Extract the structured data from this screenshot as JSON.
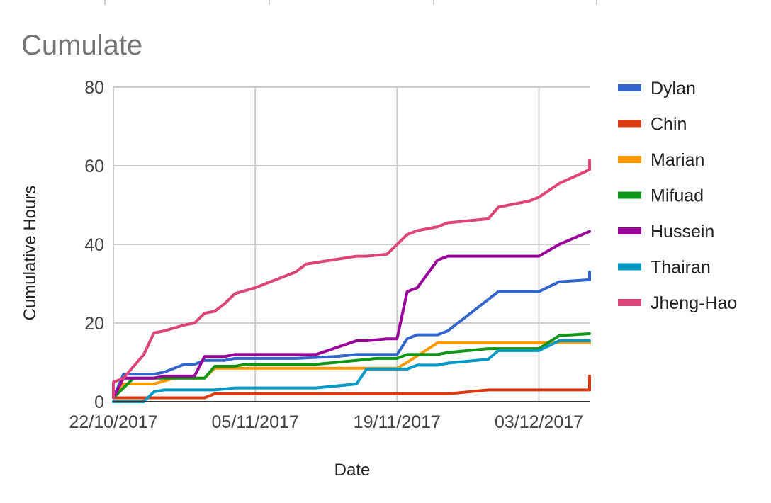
{
  "chart_data": {
    "type": "line",
    "title": "Cumulate",
    "xlabel": "Date",
    "ylabel": "Cumulative Hours",
    "xlim": [
      "2017-10-22",
      "2017-12-08"
    ],
    "ylim": [
      0,
      80
    ],
    "y_ticks": [
      0,
      20,
      40,
      60,
      80
    ],
    "x_ticks": [
      "2017-10-22",
      "2017-11-05",
      "2017-11-19",
      "2017-12-03"
    ],
    "x_tick_labels": [
      "22/10/2017",
      "05/11/2017",
      "19/11/2017",
      "03/12/2017"
    ],
    "grid": true,
    "legend": "right",
    "series": [
      {
        "name": "Dylan",
        "color": "#3366cc",
        "points": [
          [
            "2017-10-19",
            1
          ],
          [
            "2017-10-22",
            1
          ],
          [
            "2017-10-23",
            7
          ],
          [
            "2017-10-26",
            7
          ],
          [
            "2017-10-27",
            7.5
          ],
          [
            "2017-10-29",
            9.5
          ],
          [
            "2017-10-30",
            9.5
          ],
          [
            "2017-10-31",
            10.5
          ],
          [
            "2017-11-02",
            10.5
          ],
          [
            "2017-11-03",
            11
          ],
          [
            "2017-11-09",
            11
          ],
          [
            "2017-11-13",
            11.5
          ],
          [
            "2017-11-15",
            12
          ],
          [
            "2017-11-19",
            12
          ],
          [
            "2017-11-20",
            16
          ],
          [
            "2017-11-21",
            17
          ],
          [
            "2017-11-23",
            17
          ],
          [
            "2017-11-24",
            18
          ],
          [
            "2017-11-27",
            24
          ],
          [
            "2017-11-29",
            28
          ],
          [
            "2017-12-03",
            28
          ],
          [
            "2017-12-05",
            30.5
          ],
          [
            "2017-12-08",
            31
          ],
          [
            "2017-12-09",
            33
          ]
        ]
      },
      {
        "name": "Chin",
        "color": "#dc3912",
        "points": [
          [
            "2017-10-19",
            1
          ],
          [
            "2017-10-31",
            1
          ],
          [
            "2017-11-01",
            2
          ],
          [
            "2017-11-19",
            2
          ],
          [
            "2017-11-24",
            2
          ],
          [
            "2017-11-28",
            3
          ],
          [
            "2017-12-08",
            3
          ],
          [
            "2017-12-09",
            6.5
          ]
        ]
      },
      {
        "name": "Marian",
        "color": "#ff9900",
        "points": [
          [
            "2017-10-19",
            1
          ],
          [
            "2017-10-22",
            1
          ],
          [
            "2017-10-23",
            4.5
          ],
          [
            "2017-10-26",
            4.5
          ],
          [
            "2017-10-28",
            6
          ],
          [
            "2017-10-31",
            6
          ],
          [
            "2017-11-01",
            8.5
          ],
          [
            "2017-11-09",
            8.5
          ],
          [
            "2017-11-19",
            8.5
          ],
          [
            "2017-11-20",
            10
          ],
          [
            "2017-11-23",
            15
          ],
          [
            "2017-12-03",
            15
          ],
          [
            "2017-12-09",
            15
          ]
        ]
      },
      {
        "name": "Mifuad",
        "color": "#109618",
        "points": [
          [
            "2017-10-19",
            1
          ],
          [
            "2017-10-22",
            1
          ],
          [
            "2017-10-24",
            6
          ],
          [
            "2017-10-26",
            6
          ],
          [
            "2017-10-31",
            6
          ],
          [
            "2017-11-01",
            9
          ],
          [
            "2017-11-03",
            9
          ],
          [
            "2017-11-04",
            9.5
          ],
          [
            "2017-11-11",
            9.5
          ],
          [
            "2017-11-15",
            10.5
          ],
          [
            "2017-11-17",
            11
          ],
          [
            "2017-11-19",
            11
          ],
          [
            "2017-11-20",
            12
          ],
          [
            "2017-11-23",
            12
          ],
          [
            "2017-11-24",
            12.5
          ],
          [
            "2017-11-28",
            13.5
          ],
          [
            "2017-12-03",
            13.5
          ],
          [
            "2017-12-05",
            16.8
          ],
          [
            "2017-12-08",
            17.3
          ],
          [
            "2017-12-09",
            17.3
          ]
        ]
      },
      {
        "name": "Hussein",
        "color": "#990099",
        "points": [
          [
            "2017-10-19",
            1
          ],
          [
            "2017-10-22",
            1
          ],
          [
            "2017-10-23",
            6
          ],
          [
            "2017-10-26",
            6
          ],
          [
            "2017-10-27",
            6.5
          ],
          [
            "2017-10-30",
            6.5
          ],
          [
            "2017-10-31",
            11.5
          ],
          [
            "2017-11-02",
            11.5
          ],
          [
            "2017-11-03",
            12
          ],
          [
            "2017-11-11",
            12
          ],
          [
            "2017-11-15",
            15.5
          ],
          [
            "2017-11-16",
            15.5
          ],
          [
            "2017-11-18",
            16
          ],
          [
            "2017-11-19",
            16
          ],
          [
            "2017-11-20",
            28
          ],
          [
            "2017-11-21",
            29
          ],
          [
            "2017-11-23",
            36
          ],
          [
            "2017-11-24",
            37
          ],
          [
            "2017-12-03",
            37
          ],
          [
            "2017-12-05",
            40
          ],
          [
            "2017-12-08",
            43.3
          ],
          [
            "2017-12-09",
            43.3
          ]
        ]
      },
      {
        "name": "Thairan",
        "color": "#0099c6",
        "points": [
          [
            "2017-10-19",
            0
          ],
          [
            "2017-10-25",
            0
          ],
          [
            "2017-10-26",
            2.5
          ],
          [
            "2017-10-27",
            3
          ],
          [
            "2017-10-31",
            3
          ],
          [
            "2017-11-01",
            3
          ],
          [
            "2017-11-03",
            3.5
          ],
          [
            "2017-11-11",
            3.5
          ],
          [
            "2017-11-15",
            4.5
          ],
          [
            "2017-11-16",
            8.3
          ],
          [
            "2017-11-19",
            8.3
          ],
          [
            "2017-11-20",
            8.3
          ],
          [
            "2017-11-21",
            9.3
          ],
          [
            "2017-11-23",
            9.3
          ],
          [
            "2017-11-24",
            9.8
          ],
          [
            "2017-11-28",
            10.8
          ],
          [
            "2017-11-29",
            13
          ],
          [
            "2017-12-03",
            13
          ],
          [
            "2017-12-05",
            15.5
          ],
          [
            "2017-12-09",
            15.5
          ]
        ]
      },
      {
        "name": "Jheng-Hao",
        "color": "#dd4477",
        "points": [
          [
            "2017-10-19",
            1
          ],
          [
            "2017-10-22",
            5
          ],
          [
            "2017-10-23",
            6
          ],
          [
            "2017-10-24",
            9
          ],
          [
            "2017-10-25",
            12
          ],
          [
            "2017-10-26",
            17.5
          ],
          [
            "2017-10-27",
            18
          ],
          [
            "2017-10-29",
            19.5
          ],
          [
            "2017-10-30",
            20
          ],
          [
            "2017-10-31",
            22.5
          ],
          [
            "2017-11-01",
            23
          ],
          [
            "2017-11-02",
            25
          ],
          [
            "2017-11-03",
            27.5
          ],
          [
            "2017-11-05",
            29
          ],
          [
            "2017-11-09",
            33
          ],
          [
            "2017-11-10",
            35
          ],
          [
            "2017-11-15",
            37
          ],
          [
            "2017-11-16",
            37
          ],
          [
            "2017-11-18",
            37.5
          ],
          [
            "2017-11-19",
            40
          ],
          [
            "2017-11-20",
            42.5
          ],
          [
            "2017-11-21",
            43.5
          ],
          [
            "2017-11-23",
            44.5
          ],
          [
            "2017-11-24",
            45.5
          ],
          [
            "2017-11-28",
            46.5
          ],
          [
            "2017-11-29",
            49.5
          ],
          [
            "2017-12-02",
            51
          ],
          [
            "2017-12-03",
            52
          ],
          [
            "2017-12-05",
            55.5
          ],
          [
            "2017-12-08",
            59
          ],
          [
            "2017-12-09",
            61.5
          ]
        ]
      }
    ]
  }
}
